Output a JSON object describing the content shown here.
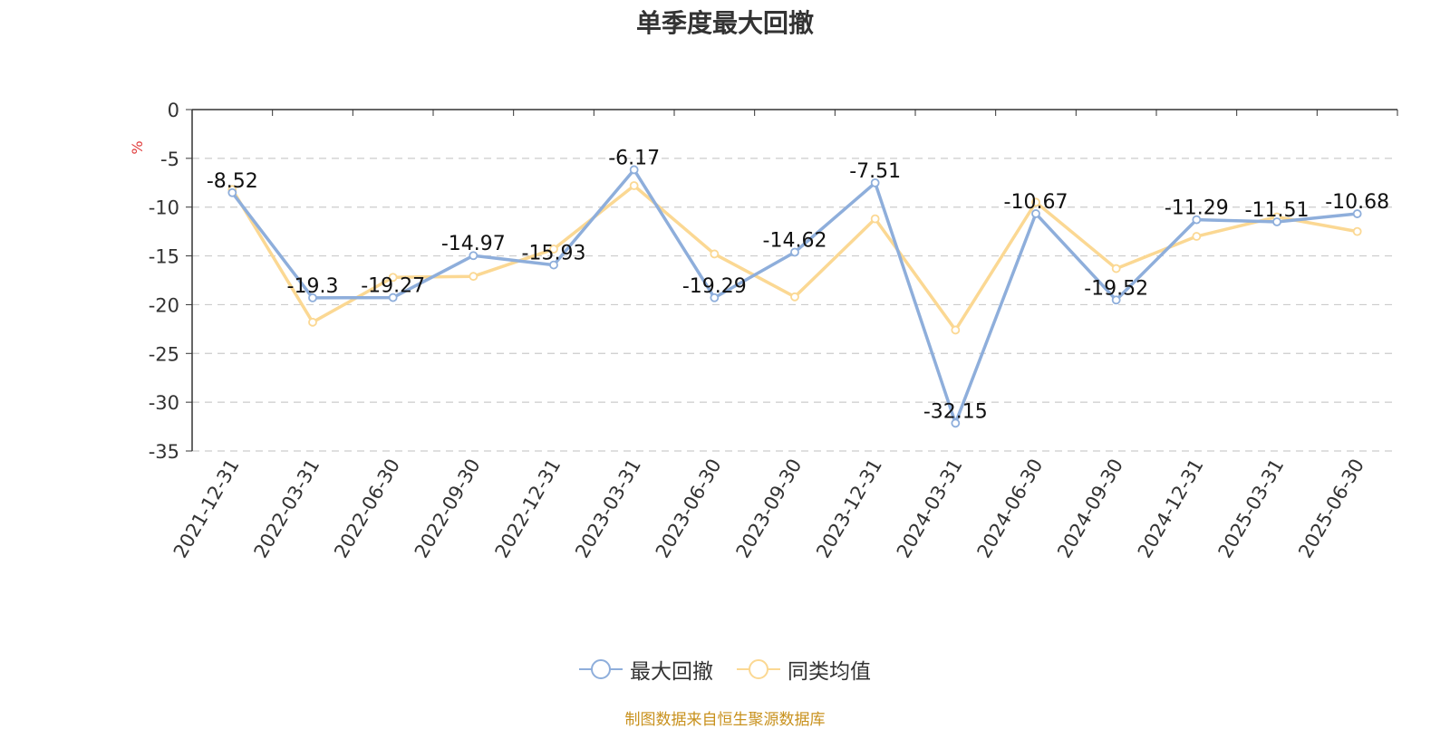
{
  "chart_data": {
    "type": "line",
    "title": "单季度最大回撤",
    "ylabel": "%",
    "ylim": [
      -35,
      0
    ],
    "yticks": [
      0,
      -5,
      -10,
      -15,
      -20,
      -25,
      -30,
      -35
    ],
    "grid": true,
    "legend_position": "bottom-center",
    "categories": [
      "2021-12-31",
      "2022-03-31",
      "2022-06-30",
      "2022-09-30",
      "2022-12-31",
      "2023-03-31",
      "2023-06-30",
      "2023-09-30",
      "2023-12-31",
      "2024-03-31",
      "2024-06-30",
      "2024-09-30",
      "2024-12-31",
      "2025-03-31",
      "2025-06-30"
    ],
    "series": [
      {
        "name": "最大回撤",
        "color": "#8eaedb",
        "show_labels": true,
        "values": [
          -8.52,
          -19.3,
          -19.27,
          -14.97,
          -15.93,
          -6.17,
          -19.29,
          -14.62,
          -7.51,
          -32.15,
          -10.67,
          -19.52,
          -11.29,
          -11.51,
          -10.68
        ]
      },
      {
        "name": "同类均值",
        "color": "#fbd893",
        "show_labels": false,
        "values": [
          -8.2,
          -21.8,
          -17.2,
          -17.1,
          -14.3,
          -7.8,
          -14.8,
          -19.2,
          -11.2,
          -22.6,
          -9.5,
          -16.3,
          -13.0,
          -11.0,
          -12.5
        ]
      }
    ]
  },
  "footer": {
    "source": "制图数据来自恒生聚源数据库"
  },
  "colors": {
    "axis": "#333333",
    "grid": "#cccccc",
    "ylabel": "#e03b3b",
    "source": "#c8911d"
  }
}
